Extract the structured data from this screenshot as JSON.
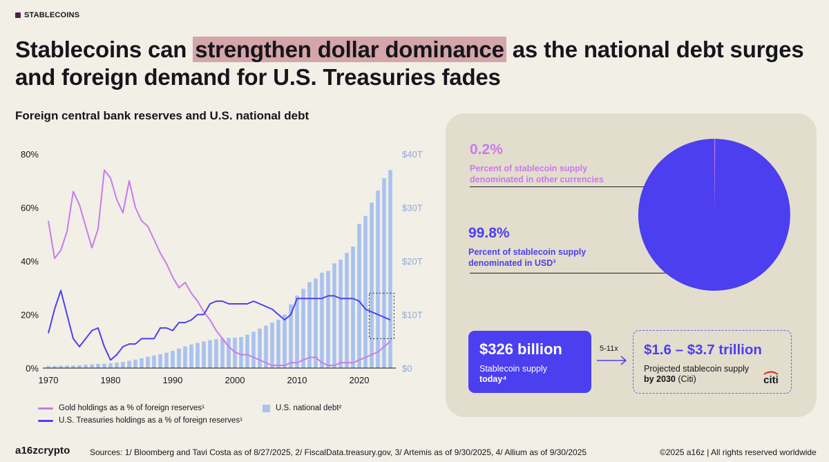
{
  "tag": "STABLECOINS",
  "headline": {
    "before": "Stablecoins can ",
    "highlight": "strengthen dollar dominance",
    "after": " as the national debt surges and foreign demand for U.S. Treasuries fades"
  },
  "subtitle": "Foreign central bank reserves and U.S. national debt",
  "colors": {
    "gold": "#c77bea",
    "treasuries": "#4b3ff0",
    "debt": "#a9c2ef",
    "pie_main": "#4b3ff0",
    "pie_other": "#c77bea",
    "highlight": "#d4a5a9"
  },
  "chart_data": {
    "type": "bar+line",
    "x": [
      1970,
      1971,
      1972,
      1973,
      1974,
      1975,
      1976,
      1977,
      1978,
      1979,
      1980,
      1981,
      1982,
      1983,
      1984,
      1985,
      1986,
      1987,
      1988,
      1989,
      1990,
      1991,
      1992,
      1993,
      1994,
      1995,
      1996,
      1997,
      1998,
      1999,
      2000,
      2001,
      2002,
      2003,
      2004,
      2005,
      2006,
      2007,
      2008,
      2009,
      2010,
      2011,
      2012,
      2013,
      2014,
      2015,
      2016,
      2017,
      2018,
      2019,
      2020,
      2021,
      2022,
      2023,
      2024,
      2025
    ],
    "xticks": [
      1970,
      1980,
      1990,
      2000,
      2010,
      2020
    ],
    "left_axis": {
      "ticks": [
        "0%",
        "20%",
        "40%",
        "60%",
        "80%"
      ],
      "values": [
        0,
        20,
        40,
        60,
        80
      ],
      "range": [
        0,
        80
      ]
    },
    "right_axis": {
      "ticks": [
        "$0",
        "$10T",
        "$20T",
        "$30T",
        "$40T"
      ],
      "values": [
        0,
        10,
        20,
        30,
        40
      ],
      "range": [
        0,
        40
      ]
    },
    "series": [
      {
        "name": "U.S. national debt²",
        "kind": "bar",
        "axis": "right",
        "unit": "trillion USD",
        "values": [
          0.37,
          0.4,
          0.44,
          0.47,
          0.48,
          0.53,
          0.62,
          0.7,
          0.77,
          0.83,
          0.91,
          1.0,
          1.14,
          1.37,
          1.57,
          1.82,
          2.13,
          2.35,
          2.6,
          2.86,
          3.23,
          3.67,
          4.06,
          4.41,
          4.69,
          4.97,
          5.22,
          5.41,
          5.53,
          5.66,
          5.67,
          5.81,
          6.23,
          6.78,
          7.38,
          7.93,
          8.51,
          9.01,
          10.02,
          11.91,
          13.56,
          14.79,
          16.07,
          16.74,
          17.82,
          18.15,
          19.57,
          20.24,
          21.52,
          22.72,
          26.95,
          28.43,
          30.93,
          33.17,
          35.46,
          37.0
        ]
      },
      {
        "name": "Gold holdings as a % of foreign reserves¹",
        "kind": "line",
        "axis": "left",
        "values": [
          55,
          41,
          44,
          51,
          66,
          61,
          53,
          45,
          52,
          74,
          71,
          63,
          58,
          70,
          60,
          55,
          53,
          48,
          43,
          39,
          34,
          30,
          32,
          28,
          25,
          21,
          18,
          14,
          11,
          8,
          6,
          5,
          5,
          4,
          3,
          2,
          1,
          1,
          1,
          2,
          2,
          3,
          4,
          4,
          2,
          1,
          1,
          2,
          2,
          2,
          3,
          4,
          5,
          6,
          8,
          10
        ]
      },
      {
        "name": "U.S. Treasuries holdings as a % of foreign reserves¹",
        "kind": "line",
        "axis": "left",
        "values": [
          13,
          22,
          29,
          20,
          11,
          8,
          11,
          14,
          15,
          8,
          3,
          5,
          8,
          9,
          9,
          11,
          11,
          11,
          15,
          15,
          14,
          17,
          17,
          18,
          20,
          20,
          24,
          25,
          25,
          24,
          24,
          24,
          24,
          25,
          24,
          23,
          22,
          20,
          18,
          20,
          26,
          26,
          26,
          26,
          26,
          27,
          27,
          26,
          26,
          26,
          25,
          22,
          21,
          20,
          19,
          18
        ]
      }
    ],
    "legend": [
      "Gold holdings as a % of foreign reserves¹",
      "U.S. national debt²",
      "U.S. Treasuries holdings as a % of foreign reserves¹"
    ],
    "legend_position": "bottom",
    "grid": false,
    "annotation": "dotted box around 2022–2025"
  },
  "pie_data": {
    "type": "pie",
    "slices": [
      {
        "label": "USD",
        "value": 99.8
      },
      {
        "label": "Other currencies",
        "value": 0.2
      }
    ]
  },
  "panel": {
    "other_pct": "0.2%",
    "other_desc": "Percent of stablecoin supply denominated in other currencies",
    "usd_pct": "99.8%",
    "usd_desc": "Percent of stablecoin supply denominated in USD³",
    "today_value": "$326 billion",
    "today_label": "Stablecoin supply ",
    "today_label_bold": "today⁴",
    "multiplier": "5-11x",
    "projection_value": "$1.6 – $3.7 trillion",
    "projection_label": "Projected stablecoin supply ",
    "projection_label_bold": "by 2030",
    "projection_label_after": " (Citi)",
    "citi_logo": "citi"
  },
  "footer": {
    "logo": "a16zcrypto",
    "sources": "Sources: 1/ Bloomberg and Tavi Costa as of 8/27/2025, 2/ FiscalData.treasury.gov, 3/ Artemis as of 9/30/2025, 4/ Allium as of 9/30/2025",
    "copyright": "©2025 a16z",
    "rights": "All rights reserved worldwide"
  }
}
